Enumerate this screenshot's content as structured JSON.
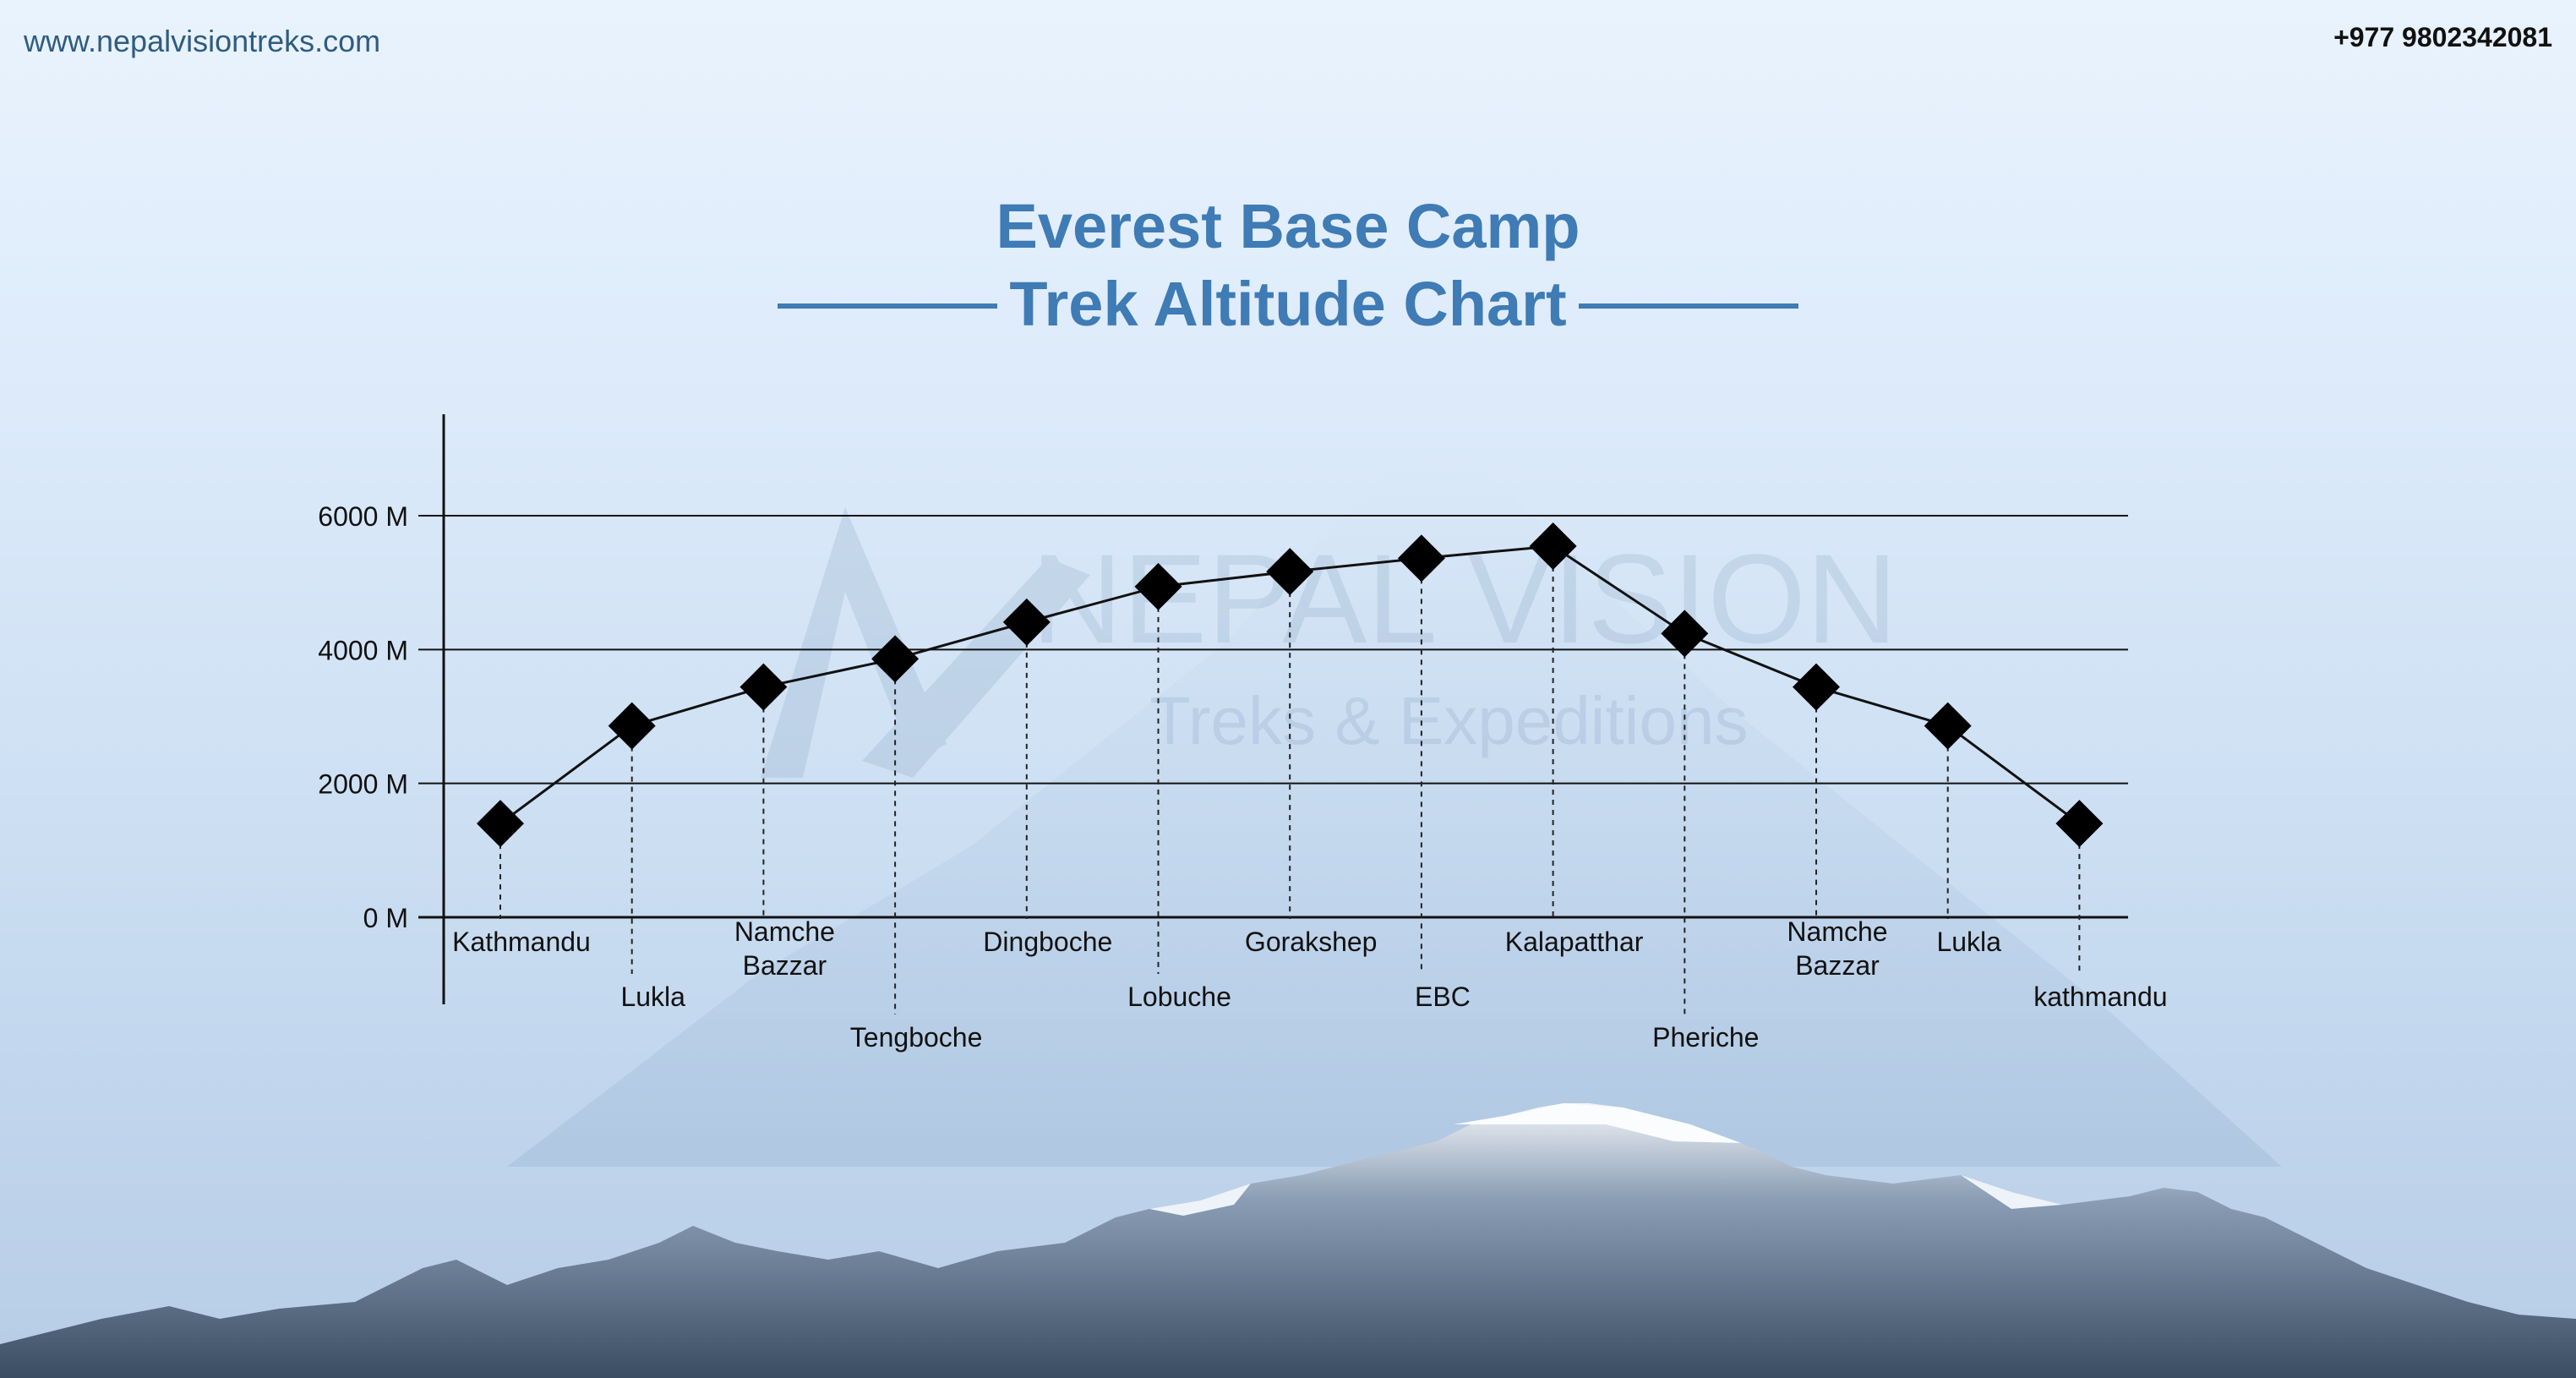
{
  "header": {
    "website": "www.nepalvisiontreks.com",
    "phone": "+977 9802342081"
  },
  "title": {
    "line1": "Everest Base Camp",
    "line2": "Trek Altitude Chart"
  },
  "watermark": {
    "brand": "NEPAL VISION",
    "tagline": "Treks & Expeditions"
  },
  "colors": {
    "title": "#3f7bb4",
    "line": "#111111",
    "marker": "#000000"
  },
  "chart_data": {
    "type": "line",
    "title": "Everest Base Camp Trek Altitude Chart",
    "xlabel": "",
    "ylabel": "",
    "ylim": [
      0,
      7000
    ],
    "yticks": [
      0,
      2000,
      4000,
      6000
    ],
    "ytick_labels": [
      "0 M",
      "2000 M",
      "4000 M",
      "6000 M"
    ],
    "grid": true,
    "legend": "none",
    "series": [
      {
        "points": [
          {
            "label": "Kathmandu",
            "value": 1400,
            "label_level": 1
          },
          {
            "label": "Lukla",
            "value": 2860,
            "label_level": 2
          },
          {
            "label": "Namche Bazzar",
            "value": 3440,
            "label_level": 1
          },
          {
            "label": "Tengboche",
            "value": 3860,
            "label_level": 3
          },
          {
            "label": "Dingboche",
            "value": 4410,
            "label_level": 1
          },
          {
            "label": "Lobuche",
            "value": 4940,
            "label_level": 2
          },
          {
            "label": "Gorakshep",
            "value": 5164,
            "label_level": 1
          },
          {
            "label": "EBC",
            "value": 5364,
            "label_level": 2
          },
          {
            "label": "Kalapatthar",
            "value": 5545,
            "label_level": 1
          },
          {
            "label": "Pheriche",
            "value": 4240,
            "label_level": 3
          },
          {
            "label": "Namche Bazzar",
            "value": 3440,
            "label_level": 1
          },
          {
            "label": "Lukla",
            "value": 2860,
            "label_level": 1
          },
          {
            "label": "kathmandu",
            "value": 1400,
            "label_level": 2
          }
        ]
      }
    ]
  }
}
